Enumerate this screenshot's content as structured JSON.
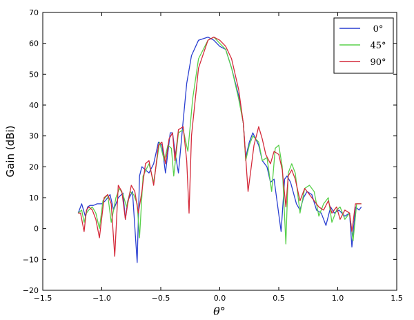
{
  "chart_data": {
    "type": "line",
    "title": "",
    "xlabel": "θ°",
    "ylabel": "Gain (dBi)",
    "xlim": [
      -1.5,
      1.5
    ],
    "ylim": [
      -20,
      70
    ],
    "xticks": [
      -1.5,
      -1.0,
      -0.5,
      0.0,
      0.5,
      1.0,
      1.5
    ],
    "xtick_labels": [
      "−1.5",
      "−1.0",
      "−0.5",
      "0.0",
      "0.5",
      "1.0",
      "1.5"
    ],
    "yticks": [
      -20,
      -10,
      0,
      10,
      20,
      30,
      40,
      50,
      60,
      70
    ],
    "ytick_labels": [
      "−20",
      "−10",
      "0",
      "10",
      "20",
      "30",
      "40",
      "50",
      "60",
      "70"
    ],
    "grid": false,
    "legend_position": "top-right",
    "series": [
      {
        "name": "0°",
        "color": "#2a3fd1",
        "x": [
          -1.2,
          -1.17,
          -1.14,
          -1.12,
          -1.1,
          -1.07,
          -1.04,
          -1.0,
          -0.97,
          -0.93,
          -0.9,
          -0.86,
          -0.82,
          -0.8,
          -0.78,
          -0.74,
          -0.7,
          -0.68,
          -0.66,
          -0.6,
          -0.56,
          -0.52,
          -0.49,
          -0.46,
          -0.42,
          -0.4,
          -0.38,
          -0.35,
          -0.31,
          -0.28,
          -0.24,
          -0.18,
          -0.1,
          -0.05,
          0.0,
          0.05,
          0.1,
          0.16,
          0.2,
          0.22,
          0.25,
          0.28,
          0.33,
          0.36,
          0.4,
          0.43,
          0.46,
          0.52,
          0.55,
          0.57,
          0.6,
          0.65,
          0.68,
          0.71,
          0.74,
          0.78,
          0.82,
          0.86,
          0.9,
          0.94,
          0.97,
          1.01,
          1.06,
          1.1,
          1.12,
          1.15,
          1.18,
          1.2
        ],
        "y": [
          5,
          8,
          4,
          7,
          7.5,
          7.5,
          8,
          8,
          9,
          11,
          6,
          10,
          11.5,
          3,
          9,
          12,
          -11,
          17,
          20,
          18,
          21,
          28,
          27,
          18,
          31,
          31,
          25,
          18,
          35,
          47,
          56,
          61,
          62,
          61,
          59,
          58,
          52,
          43,
          34,
          23,
          28,
          31,
          27,
          22,
          20,
          15,
          16,
          -1,
          16,
          17,
          15,
          8,
          6,
          10,
          12,
          11,
          6,
          5,
          1,
          7,
          5,
          6,
          4,
          5,
          -6,
          7,
          6,
          7
        ]
      },
      {
        "name": "45°",
        "color": "#58d04a",
        "x": [
          -1.2,
          -1.17,
          -1.15,
          -1.13,
          -1.11,
          -1.08,
          -1.05,
          -1.02,
          -0.99,
          -0.95,
          -0.92,
          -0.88,
          -0.85,
          -0.82,
          -0.79,
          -0.76,
          -0.73,
          -0.7,
          -0.68,
          -0.65,
          -0.6,
          -0.56,
          -0.51,
          -0.47,
          -0.44,
          -0.41,
          -0.39,
          -0.35,
          -0.31,
          -0.27,
          -0.23,
          -0.18,
          -0.1,
          -0.05,
          0.0,
          0.05,
          0.1,
          0.16,
          0.2,
          0.22,
          0.25,
          0.28,
          0.33,
          0.36,
          0.4,
          0.44,
          0.47,
          0.5,
          0.53,
          0.56,
          0.58,
          0.61,
          0.64,
          0.68,
          0.72,
          0.76,
          0.8,
          0.84,
          0.88,
          0.92,
          0.95,
          0.99,
          1.02,
          1.06,
          1.1,
          1.13,
          1.16,
          1.2
        ],
        "y": [
          5,
          6,
          2,
          5,
          6,
          7,
          5,
          0,
          9,
          11,
          2,
          10,
          13,
          11,
          7,
          12,
          11,
          8,
          -3,
          17,
          21,
          15,
          28,
          22,
          27,
          26,
          17,
          31,
          32,
          25,
          42,
          55,
          61,
          62,
          60,
          58,
          52,
          42,
          34,
          22,
          27,
          30,
          28,
          22,
          23,
          12,
          26,
          27,
          20,
          -5,
          18,
          21,
          18,
          5,
          13,
          14,
          12,
          4,
          8,
          10,
          2,
          6,
          7,
          3,
          5,
          -4,
          8,
          8
        ]
      },
      {
        "name": "90°",
        "color": "#d42a3a",
        "x": [
          -1.2,
          -1.18,
          -1.15,
          -1.13,
          -1.11,
          -1.08,
          -1.05,
          -1.02,
          -0.98,
          -0.95,
          -0.92,
          -0.89,
          -0.86,
          -0.83,
          -0.8,
          -0.78,
          -0.75,
          -0.72,
          -0.69,
          -0.66,
          -0.63,
          -0.6,
          -0.56,
          -0.52,
          -0.49,
          -0.46,
          -0.43,
          -0.4,
          -0.38,
          -0.35,
          -0.31,
          -0.28,
          -0.26,
          -0.24,
          -0.18,
          -0.1,
          -0.05,
          0.0,
          0.05,
          0.1,
          0.16,
          0.2,
          0.22,
          0.24,
          0.26,
          0.29,
          0.33,
          0.36,
          0.39,
          0.43,
          0.46,
          0.5,
          0.53,
          0.56,
          0.58,
          0.61,
          0.64,
          0.68,
          0.72,
          0.76,
          0.8,
          0.84,
          0.88,
          0.92,
          0.95,
          0.99,
          1.02,
          1.06,
          1.1,
          1.12,
          1.15,
          1.18,
          1.2
        ],
        "y": [
          5,
          5,
          -1,
          6,
          7,
          6,
          3,
          -3,
          10,
          11,
          8,
          -9,
          14,
          12,
          3,
          8,
          14,
          12,
          5,
          12,
          21,
          22,
          14,
          27,
          28,
          21,
          29,
          31,
          22,
          32,
          33,
          22,
          5,
          30,
          52,
          61,
          62,
          61,
          59,
          55,
          45,
          34,
          23,
          12,
          18,
          27,
          33,
          29,
          24,
          21,
          25,
          24,
          19,
          7,
          17,
          19,
          16,
          9,
          13,
          11,
          9,
          7,
          6,
          9,
          5,
          7,
          3,
          6,
          5,
          -1,
          8,
          8,
          8
        ]
      }
    ]
  }
}
